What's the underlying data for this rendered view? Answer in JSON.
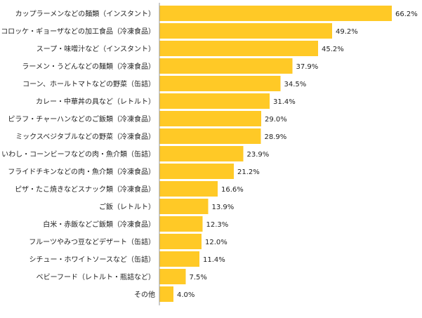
{
  "chart_data": {
    "type": "bar",
    "orientation": "horizontal",
    "categories": [
      "カップラーメンなどの麺類（インスタント）",
      "コロッケ・ギョーザなどの加工食品（冷凍食品）",
      "スープ・味噌汁など（インスタント）",
      "ラーメン・うどんなどの麺類（冷凍食品）",
      "コーン、ホールトマトなどの野菜（缶詰）",
      "カレー・中華丼の具など（レトルト）",
      "ピラフ・チャーハンなどのご飯類（冷凍食品）",
      "ミックスベジタブルなどの野菜（冷凍食品）",
      "いわし・コーンビーフなどの肉・魚介類（缶詰）",
      "フライドチキンなどの肉・魚介類（冷凍食品）",
      "ピザ・たこ焼きなどスナック類（冷凍食品）",
      "ご飯（レトルト）",
      "白米・赤飯などご飯類（冷凍食品）",
      "フルーツやみつ豆などデザート（缶詰）",
      "シチュー・ホワイトソースなど（缶詰）",
      "ベビーフード（レトルト・瓶詰など）",
      "その他"
    ],
    "values": [
      66.2,
      49.2,
      45.2,
      37.9,
      34.5,
      31.4,
      29.0,
      28.9,
      23.9,
      21.2,
      16.6,
      13.9,
      12.3,
      12.0,
      11.4,
      7.5,
      4.0
    ],
    "value_labels": [
      "66.2%",
      "49.2%",
      "45.2%",
      "37.9%",
      "34.5%",
      "31.4%",
      "29.0%",
      "28.9%",
      "23.9%",
      "21.2%",
      "16.6%",
      "13.9%",
      "12.3%",
      "12.0%",
      "11.4%",
      "7.5%",
      "4.0%"
    ],
    "unit": "%",
    "xlim": [
      0,
      66.2
    ],
    "grid": false,
    "legend": "none",
    "bar_color": "#FFC926",
    "axis_color": "#999999",
    "text_color": "#222222"
  }
}
